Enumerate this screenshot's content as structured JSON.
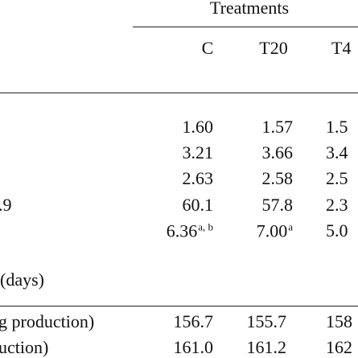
{
  "header": {
    "group": "Treatments",
    "columns": [
      "C",
      "T20",
      "T4"
    ]
  },
  "rows": [
    {
      "cells": [
        "1.60",
        "1.57",
        "1.5"
      ]
    },
    {
      "cells": [
        "3.21",
        "3.66",
        "3.4"
      ]
    },
    {
      "cells": [
        "2.63",
        "2.58",
        "2.5"
      ]
    },
    {
      "label": ".9",
      "cells": [
        "60.1",
        "57.8",
        "2.3"
      ]
    },
    {
      "cells": [
        {
          "text": "6.36",
          "sup": "a, b"
        },
        {
          "text": "7.00",
          "sup": "a"
        },
        "5.0"
      ]
    },
    {
      "label": "(days)"
    },
    {
      "label": "g production)",
      "cells": [
        "156.7",
        "155.7",
        "158"
      ]
    },
    {
      "label": "uction)",
      "cells": [
        "161.0",
        "161.2",
        "162"
      ]
    }
  ]
}
